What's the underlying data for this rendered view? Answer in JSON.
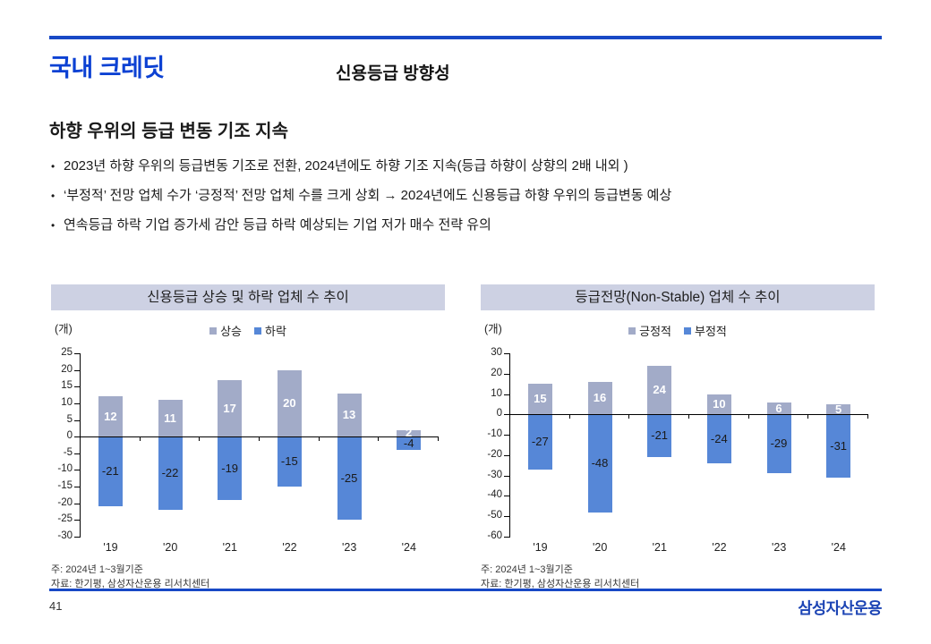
{
  "page": {
    "number": "41",
    "logo_text": "삼성자산운용"
  },
  "header": {
    "title": "국내 크레딧",
    "subtitle": "신용등급 방향성"
  },
  "summary": {
    "heading": "하향 우위의 등급 변동 기조 지속",
    "bullet_char": "•",
    "bullets": [
      "2023년 하향 우위의 등급변동 기조로 전환, 2024년에도 하향 기조 지속(등급 하향이 상향의 2배 내외 )",
      "‘부정적’ 전망 업체 수가 ‘긍정적’ 전망 업체 수를 크게 상회 → 2024년에도 신용등급 하향 우위의 등급변동 예상",
      "연속등급 하락 기업 증가세 감안 등급 하락 예상되는 기업 저가 매수 전략 유의"
    ]
  },
  "colors": {
    "rule_blue": "#1849c6",
    "title_blue": "#0c41d3",
    "logo_blue": "#1c44b4",
    "panel_header_bg": "#cdd1e3",
    "bar_gray": "#a2abc8",
    "bar_blue": "#5687d7"
  },
  "chart_data": [
    {
      "type": "bar",
      "title": "신용등급 상승 및 하락 업체 수 추이",
      "unit_label": "(개)",
      "categories": [
        "'19",
        "'20",
        "'21",
        "'22",
        "'23",
        "'24"
      ],
      "series": [
        {
          "name": "상승",
          "values": [
            12,
            11,
            17,
            20,
            13,
            2
          ],
          "color": "#a2abc8",
          "label_color": "#ffffff"
        },
        {
          "name": "하락",
          "values": [
            -21,
            -22,
            -19,
            -15,
            -25,
            -4
          ],
          "color": "#5687d7",
          "label_color": "#1a1a1a"
        }
      ],
      "ylim": [
        -30,
        25
      ],
      "tick_step": 5,
      "grid": false,
      "legend_position": "top",
      "notes": [
        "주: 2024년 1~3월기준",
        "자료: 한기평, 삼성자산운용 리서치센터"
      ]
    },
    {
      "type": "bar",
      "title": "등급전망(Non-Stable) 업체 수 추이",
      "unit_label": "(개)",
      "categories": [
        "'19",
        "'20",
        "'21",
        "'22",
        "'23",
        "'24"
      ],
      "series": [
        {
          "name": "긍정적",
          "values": [
            15,
            16,
            24,
            10,
            6,
            5
          ],
          "color": "#a2abc8",
          "label_color": "#ffffff"
        },
        {
          "name": "부정적",
          "values": [
            -27,
            -48,
            -21,
            -24,
            -29,
            -31
          ],
          "color": "#5687d7",
          "label_color": "#1a1a1a"
        }
      ],
      "ylim": [
        -60,
        30
      ],
      "tick_step": 10,
      "grid": false,
      "legend_position": "top",
      "notes": [
        "주: 2024년 1~3월기준",
        "자료: 한기평, 삼성자산운용 리서치센터"
      ]
    }
  ]
}
